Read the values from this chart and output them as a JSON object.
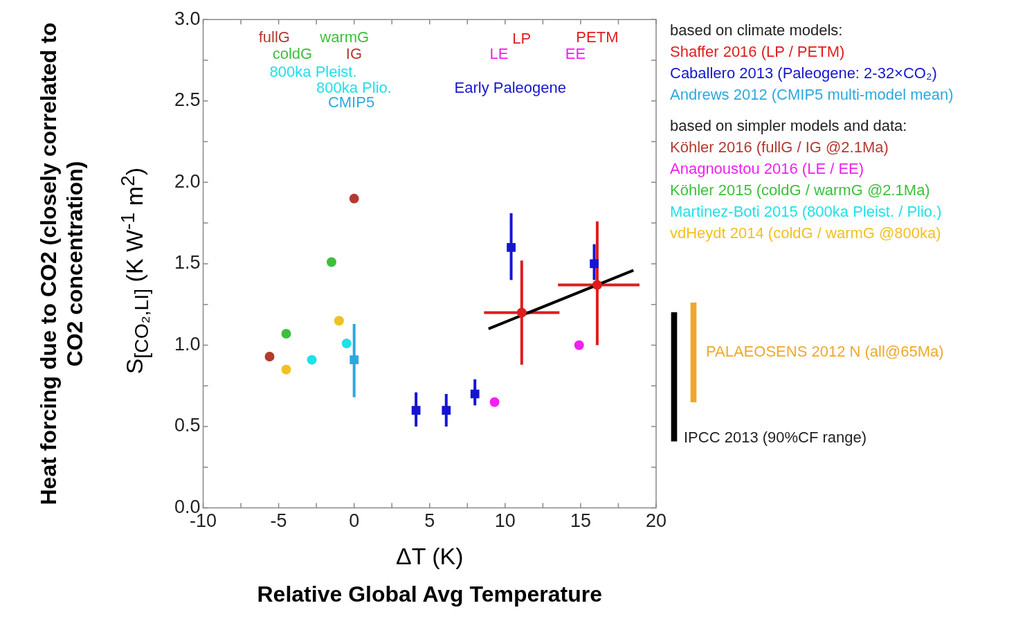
{
  "chart_data": [
    {
      "type": "scatter",
      "xlabel": "ΔT (K)",
      "ylabel": "S$_{[CO₂,LI]}$ (K W$^{-1}$ m$^{2}$)",
      "xlim": [
        -10,
        20
      ],
      "xticks": [
        -10,
        {
          "value": -7.5,
          "label": null
        },
        -5,
        {
          "value": -2.5,
          "label": null
        },
        0,
        {
          "value": 2.5,
          "label": null
        },
        5,
        {
          "value": 7.5,
          "label": null
        },
        10,
        {
          "value": 12.5,
          "label": null
        },
        15,
        {
          "value": 17.5,
          "label": null
        },
        20
      ],
      "ylim": [
        0,
        3
      ],
      "yticks": [
        {
          "value": 0,
          "label": "0.0"
        },
        {
          "value": 0.25,
          "label": null
        },
        0.5,
        {
          "value": 0.75,
          "label": null
        },
        {
          "value": 1,
          "label": "1.0"
        },
        {
          "value": 1.25,
          "label": null
        },
        1.5,
        {
          "value": 1.75,
          "label": null
        },
        {
          "value": 2,
          "label": "2.0"
        },
        {
          "value": 2.25,
          "label": null
        },
        2.5,
        {
          "value": 2.75,
          "label": null
        },
        {
          "value": 3,
          "label": "3.0"
        }
      ],
      "grid": false,
      "legend": "right",
      "series": [
        {
          "name": "Shaffer 2016 (LP / PETM)",
          "color": "#e01c1c",
          "marker": "circle",
          "x": [
            11.1,
            16.1
          ],
          "values": [
            1.2,
            1.37
          ],
          "errors": [
            [
              0.88,
              1.52
            ],
            [
              1.0,
              1.76
            ]
          ],
          "xerrors": [
            [
              8.6,
              13.6
            ],
            [
              13.5,
              18.9
            ]
          ]
        },
        {
          "name": "Caballero 2013 (Paleogene: 2-32×CO₂)",
          "color": "#1515d0",
          "marker": "square",
          "x": [
            4.1,
            6.1,
            8.0,
            10.4,
            15.9
          ],
          "values": [
            0.6,
            0.6,
            0.7,
            1.6,
            1.5
          ],
          "errors": [
            [
              0.5,
              0.71
            ],
            [
              0.5,
              0.7
            ],
            [
              0.63,
              0.79
            ],
            [
              1.4,
              1.81
            ],
            [
              1.4,
              1.62
            ]
          ]
        },
        {
          "name": "Andrews 2012 (CMIP5 multi-model mean)",
          "color": "#2ca8e0",
          "marker": "square",
          "x": [
            0
          ],
          "values": [
            0.91
          ],
          "errors": [
            [
              0.68,
              1.13
            ]
          ]
        },
        {
          "name": "Köhler 2016 (fullG / IG @2.1Ma)",
          "color": "#b33a2e",
          "marker": "circle",
          "x": [
            -5.6,
            0
          ],
          "values": [
            0.93,
            1.9
          ]
        },
        {
          "name": "Anagnoustou 2016 (LE / EE)",
          "color": "#f020f0",
          "marker": "circle",
          "x": [
            9.3,
            14.9
          ],
          "values": [
            0.65,
            1.0
          ]
        },
        {
          "name": "Köhler 2015 (coldG / warmG @2.1Ma)",
          "color": "#3cc03c",
          "marker": "circle",
          "x": [
            -4.5,
            -1.5
          ],
          "values": [
            1.07,
            1.51
          ]
        },
        {
          "name": "Martinez-Boti 2015 (800ka Pleist. / Plio.)",
          "color": "#20e0e8",
          "marker": "circle",
          "x": [
            -2.8,
            -0.5
          ],
          "values": [
            0.91,
            1.01
          ]
        },
        {
          "name": "vdHeydt 2014 (coldG / warmG @800ka)",
          "color": "#f2c020",
          "marker": "circle",
          "x": [
            -4.5,
            -1.0
          ],
          "values": [
            0.85,
            1.15
          ]
        },
        {
          "type": "line",
          "color": "#000000",
          "marker": "none",
          "x": [
            8.9,
            18.5
          ],
          "values": [
            1.1,
            1.46
          ]
        }
      ],
      "annotations": [
        "based on climate models:",
        "based on simpler models and data:",
        "Heat forcing due to CO2 (closely correlated to CO2 concentration)",
        "Relative Global Avg Temperature",
        "fullG",
        "warmG",
        "coldG",
        "IG",
        "800ka Pleist.",
        "800ka Plio.",
        "CMIP5",
        "Early Paleogene",
        "LE",
        "LP",
        "PETM",
        "EE"
      ]
    },
    {
      "type": "bar",
      "categories": [
        null,
        null
      ],
      "values": [
        0.79,
        0.61
      ],
      "base": [
        0.41,
        0.65
      ],
      "colors": [
        "#000000",
        "#f0a828"
      ],
      "ylim": [
        0,
        3
      ],
      "tick_labels": false,
      "annotations": [
        "IPCC 2013 (90%CF range)",
        "PALAEOSENS 2012 N (all@65Ma)"
      ]
    }
  ]
}
